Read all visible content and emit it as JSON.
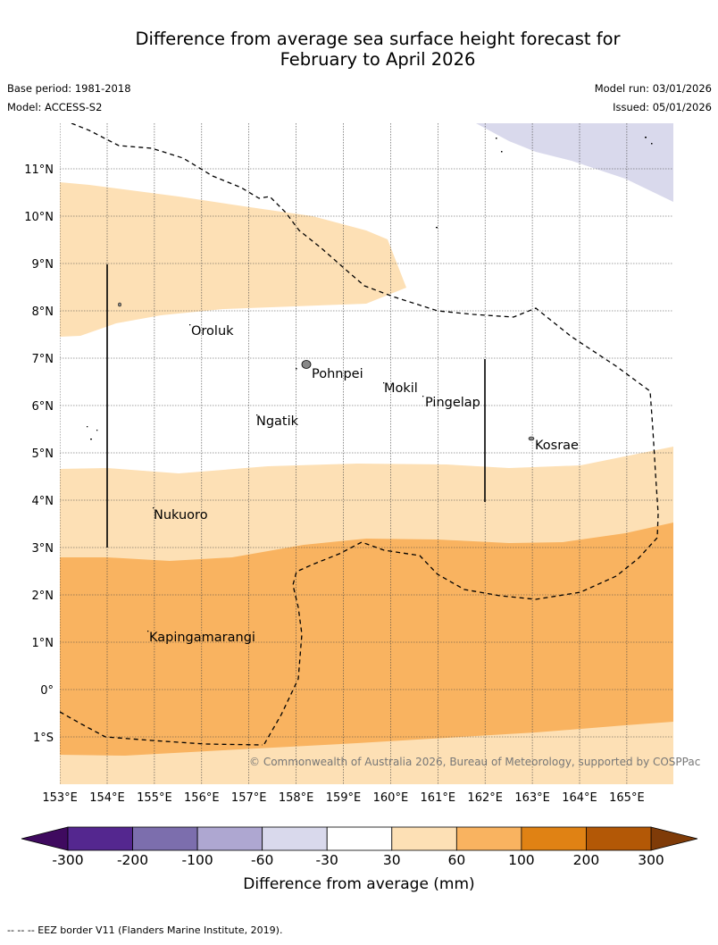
{
  "title": {
    "line1": "Difference from average sea surface height forecast for",
    "line2": "February to April 2026"
  },
  "meta": {
    "base_period": "Base period: 1981-2018",
    "model": "Model: ACCESS-S2",
    "model_run": "Model run: 03/01/2026",
    "issued": "Issued: 05/01/2026"
  },
  "map": {
    "lon_range": [
      153,
      166
    ],
    "lat_range": [
      -2,
      12
    ],
    "lon_ticks": [
      {
        "value": 153,
        "label": "153°E"
      },
      {
        "value": 154,
        "label": "154°E"
      },
      {
        "value": 155,
        "label": "155°E"
      },
      {
        "value": 156,
        "label": "156°E"
      },
      {
        "value": 157,
        "label": "157°E"
      },
      {
        "value": 158,
        "label": "158°E"
      },
      {
        "value": 159,
        "label": "159°E"
      },
      {
        "value": 160,
        "label": "160°E"
      },
      {
        "value": 161,
        "label": "161°E"
      },
      {
        "value": 162,
        "label": "162°E"
      },
      {
        "value": 163,
        "label": "163°E"
      },
      {
        "value": 164,
        "label": "164°E"
      },
      {
        "value": 165,
        "label": "165°E"
      }
    ],
    "lat_ticks": [
      {
        "value": 11,
        "label": "11°N"
      },
      {
        "value": 10,
        "label": "10°N"
      },
      {
        "value": 9,
        "label": "9°N"
      },
      {
        "value": 8,
        "label": "8°N"
      },
      {
        "value": 7,
        "label": "7°N"
      },
      {
        "value": 6,
        "label": "6°N"
      },
      {
        "value": 5,
        "label": "5°N"
      },
      {
        "value": 4,
        "label": "4°N"
      },
      {
        "value": 3,
        "label": "3°N"
      },
      {
        "value": 2,
        "label": "2°N"
      },
      {
        "value": 1,
        "label": "1°N"
      },
      {
        "value": 0,
        "label": "0°"
      },
      {
        "value": -1,
        "label": "1°S"
      }
    ],
    "places": [
      {
        "name": "Oroluk",
        "lon": 155.8,
        "lat": 7.6
      },
      {
        "name": "Pohnpei",
        "lon": 158.2,
        "lat": 6.9
      },
      {
        "name": "Mokil",
        "lon": 159.8,
        "lat": 6.7
      },
      {
        "name": "Pingelap",
        "lon": 160.7,
        "lat": 6.2
      },
      {
        "name": "Ngatik",
        "lon": 157.2,
        "lat": 5.8
      },
      {
        "name": "Kosrae",
        "lon": 163.0,
        "lat": 5.3
      },
      {
        "name": "Nukuoro",
        "lon": 155.0,
        "lat": 3.8
      },
      {
        "name": "Kapingamarangi",
        "lon": 154.8,
        "lat": 1.1
      }
    ],
    "copyright": "© Commonwealth of Australia 2026, Bureau of Meteorology, supported by COSPPac"
  },
  "colorbar": {
    "ticks": [
      "-300",
      "-200",
      "-100",
      "-60",
      "-30",
      "30",
      "60",
      "100",
      "200",
      "300"
    ],
    "colors": [
      "#3f0a5f",
      "#54278f",
      "#7c6ead",
      "#aea7d1",
      "#d9d9ec",
      "#ffffff",
      "#fde0b5",
      "#f9b360",
      "#e08214",
      "#b35806",
      "#7f3b08"
    ],
    "label": "Difference from average (mm)"
  },
  "footnote": "--  --  -- EEZ border V11 (Flanders Marine Institute, 2019)."
}
